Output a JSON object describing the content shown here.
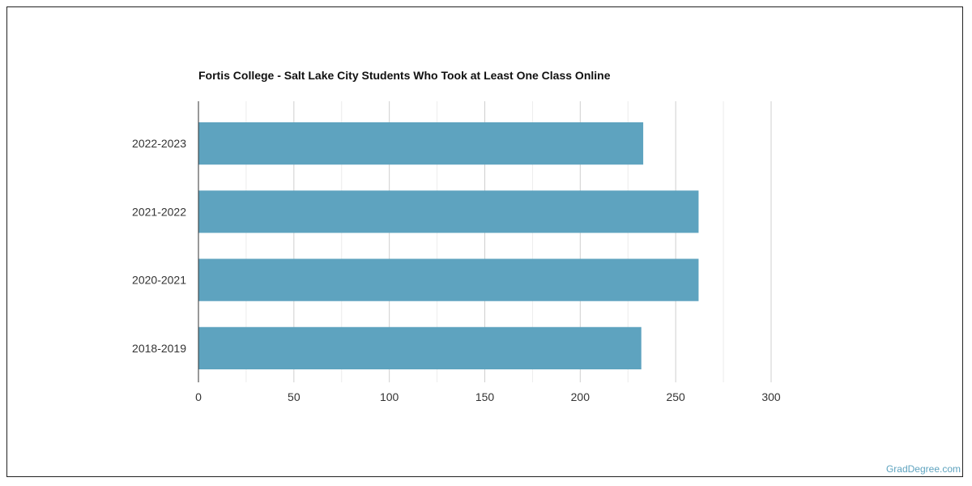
{
  "chart_data": {
    "type": "bar",
    "orientation": "horizontal",
    "title": "Fortis College - Salt Lake City Students Who Took at Least One Class Online",
    "categories": [
      "2022-2023",
      "2021-2022",
      "2020-2021",
      "2018-2019"
    ],
    "values": [
      233,
      262,
      262,
      232
    ],
    "xlim": [
      0,
      300
    ],
    "xticks": [
      0,
      50,
      100,
      150,
      200,
      250,
      300
    ],
    "xlabel": "",
    "ylabel": "",
    "grid": true,
    "bar_color": "#5ea3bf"
  },
  "footer": {
    "credit": "GradDegree.com"
  }
}
